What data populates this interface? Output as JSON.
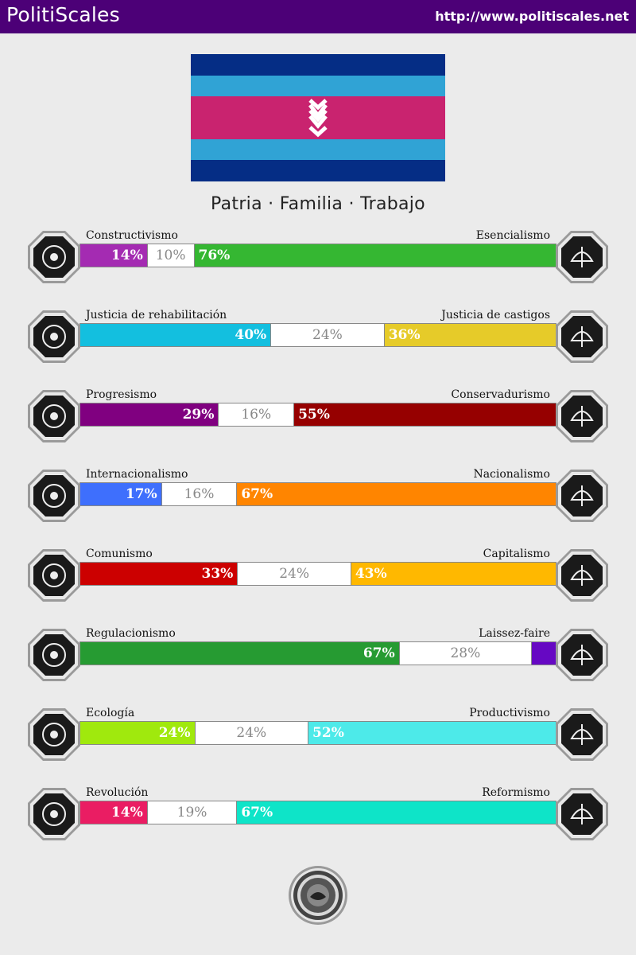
{
  "header": {
    "brand": "PolitiScales",
    "url": "http://www.politiscales.net"
  },
  "flag": {
    "stripes": [
      "#052d85",
      "#30a3d5",
      "#c9236f",
      "#30a3d5",
      "#052d85"
    ],
    "symbol_color": "#ffffff",
    "symbol_icon": "triple-chevron-symbol"
  },
  "motto": "Patria · Familia · Trabajo",
  "axes": [
    {
      "left_label": "Constructivismo",
      "right_label": "Esencialismo",
      "left_value": 14,
      "center_value": 10,
      "right_value": 76,
      "left_text": "14%",
      "center_text": "10%",
      "right_text": "76%",
      "left_color": "#a42bb2",
      "right_color": "#35b732",
      "left_icon": "eye-icon",
      "right_icon": "flower-icon"
    },
    {
      "left_label": "Justicia de rehabilitación",
      "right_label": "Justicia de castigos",
      "left_value": 40,
      "center_value": 24,
      "right_value": 36,
      "left_text": "40%",
      "center_text": "24%",
      "right_text": "36%",
      "left_color": "#13bfdf",
      "right_color": "#e6cb29",
      "left_icon": "handshake-icon",
      "right_icon": "prison-bars-icon"
    },
    {
      "left_label": "Progresismo",
      "right_label": "Conservadurismo",
      "left_value": 29,
      "center_value": 16,
      "right_value": 55,
      "left_text": "29%",
      "center_text": "16%",
      "right_text": "55%",
      "left_color": "#800080",
      "right_color": "#960000",
      "left_icon": "rocket-icon",
      "right_icon": "quill-icon"
    },
    {
      "left_label": "Internacionalismo",
      "right_label": "Nacionalismo",
      "left_value": 17,
      "center_value": 16,
      "right_value": 67,
      "left_text": "17%",
      "center_text": "16%",
      "right_text": "67%",
      "left_color": "#3e6ffd",
      "right_color": "#ff8500",
      "left_icon": "globe-icon",
      "right_icon": "flag-icon"
    },
    {
      "left_label": "Comunismo",
      "right_label": "Capitalismo",
      "left_value": 33,
      "center_value": 24,
      "right_value": 43,
      "left_text": "33%",
      "center_text": "24%",
      "right_text": "43%",
      "left_color": "#cc0000",
      "right_color": "#ffb800",
      "left_icon": "hammer-sickle-icon",
      "right_icon": "money-bag-icon"
    },
    {
      "left_label": "Regulacionismo",
      "right_label": "Laissez-faire",
      "left_value": 67,
      "center_value": 28,
      "right_value": 5,
      "left_text": "67%",
      "center_text": "28%",
      "right_text": "",
      "left_color": "#269b32",
      "right_color": "#6608c3",
      "left_icon": "ruler-icon",
      "right_icon": "butterfly-icon"
    },
    {
      "left_label": "Ecología",
      "right_label": "Productivismo",
      "left_value": 24,
      "center_value": 24,
      "right_value": 52,
      "left_text": "24%",
      "center_text": "24%",
      "right_text": "52%",
      "left_color": "#a0e90d",
      "right_color": "#4deae9",
      "left_icon": "sprout-icon",
      "right_icon": "gear-icon"
    },
    {
      "left_label": "Revolución",
      "right_label": "Reformismo",
      "left_value": 14,
      "center_value": 19,
      "right_value": 67,
      "left_text": "14%",
      "center_text": "19%",
      "right_text": "67%",
      "left_color": "#ea1d63",
      "right_color": "#0ee4c8",
      "left_icon": "fist-icon",
      "right_icon": "parliament-icon"
    }
  ],
  "footer": {
    "seal_icon": "politiscales-seal-icon"
  }
}
